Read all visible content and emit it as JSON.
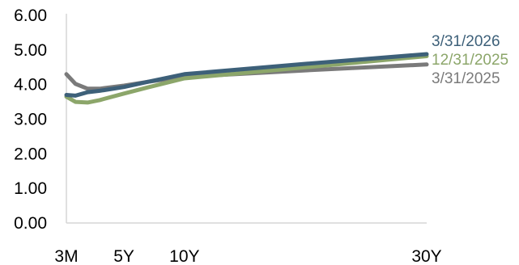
{
  "chart_data": {
    "type": "line",
    "title": "",
    "xlabel": "",
    "ylabel": "",
    "x_ticks": [
      {
        "label": "3M",
        "x": 0.25
      },
      {
        "label": "5Y",
        "x": 5
      },
      {
        "label": "10Y",
        "x": 10
      },
      {
        "label": "30Y",
        "x": 30
      }
    ],
    "xlim": [
      0.25,
      30
    ],
    "ylim": [
      0,
      6
    ],
    "y_ticks": [
      "0.00",
      "1.00",
      "2.00",
      "3.00",
      "4.00",
      "5.00",
      "6.00"
    ],
    "y_tick_values": [
      0,
      1,
      2,
      3,
      4,
      5,
      6
    ],
    "grid": false,
    "legend": "right, inline at line ends",
    "series": [
      {
        "name": "3/31/2025",
        "color": "#7a7a7a",
        "points": [
          [
            0.25,
            4.3
          ],
          [
            1,
            4.02
          ],
          [
            2,
            3.88
          ],
          [
            3,
            3.88
          ],
          [
            5,
            3.97
          ],
          [
            7,
            4.08
          ],
          [
            10,
            4.22
          ],
          [
            20,
            4.41
          ],
          [
            30,
            4.58
          ]
        ]
      },
      {
        "name": "12/31/2025",
        "color": "#8ca66a",
        "points": [
          [
            0.25,
            3.65
          ],
          [
            1,
            3.5
          ],
          [
            2,
            3.48
          ],
          [
            3,
            3.55
          ],
          [
            5,
            3.74
          ],
          [
            7,
            3.92
          ],
          [
            10,
            4.18
          ],
          [
            20,
            4.5
          ],
          [
            30,
            4.82
          ]
        ]
      },
      {
        "name": "3/31/2026",
        "color": "#3d6079",
        "points": [
          [
            0.25,
            3.7
          ],
          [
            1,
            3.68
          ],
          [
            2,
            3.78
          ],
          [
            3,
            3.82
          ],
          [
            5,
            3.93
          ],
          [
            7,
            4.08
          ],
          [
            10,
            4.3
          ],
          [
            20,
            4.6
          ],
          [
            30,
            4.88
          ]
        ]
      }
    ]
  }
}
